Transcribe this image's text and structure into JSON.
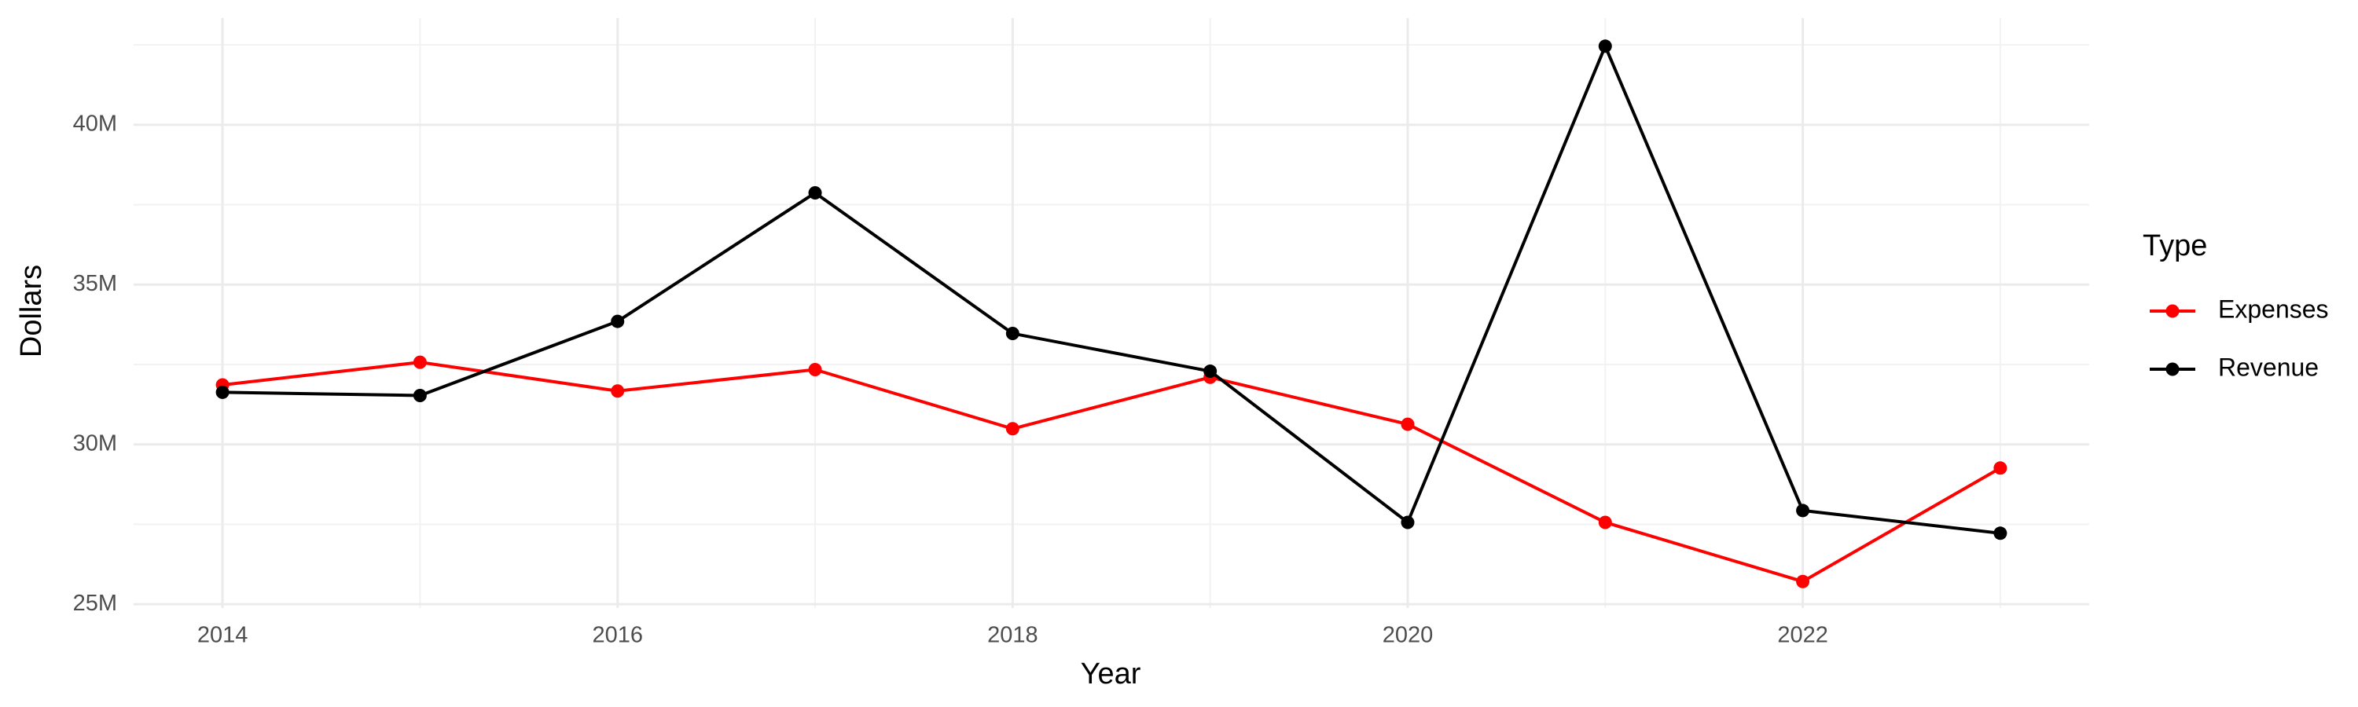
{
  "chart_data": {
    "type": "line",
    "x_label": "Year",
    "y_label": "Dollars",
    "legend_title": "Type",
    "x": [
      2014,
      2015,
      2016,
      2017,
      2018,
      2019,
      2020,
      2021,
      2022,
      2023
    ],
    "series": [
      {
        "name": "Expenses",
        "color": "#ff0000",
        "values": [
          31860000,
          32570000,
          31670000,
          32340000,
          30490000,
          32100000,
          30630000,
          27560000,
          25710000,
          29260000
        ]
      },
      {
        "name": "Revenue",
        "color": "#000000",
        "values": [
          31630000,
          31530000,
          33850000,
          37870000,
          33470000,
          32290000,
          27560000,
          42460000,
          27930000,
          27220000
        ]
      }
    ],
    "xlim": [
      2013.55,
      2023.45
    ],
    "xticks": [
      2014,
      2016,
      2018,
      2020,
      2022
    ],
    "ylim": [
      24880000,
      43340000
    ],
    "yticks": [
      {
        "value": 25000000,
        "label": "25M"
      },
      {
        "value": 30000000,
        "label": "30M"
      },
      {
        "value": 35000000,
        "label": "35M"
      },
      {
        "value": 40000000,
        "label": "40M"
      }
    ],
    "grid": true,
    "legend_position": "right"
  }
}
